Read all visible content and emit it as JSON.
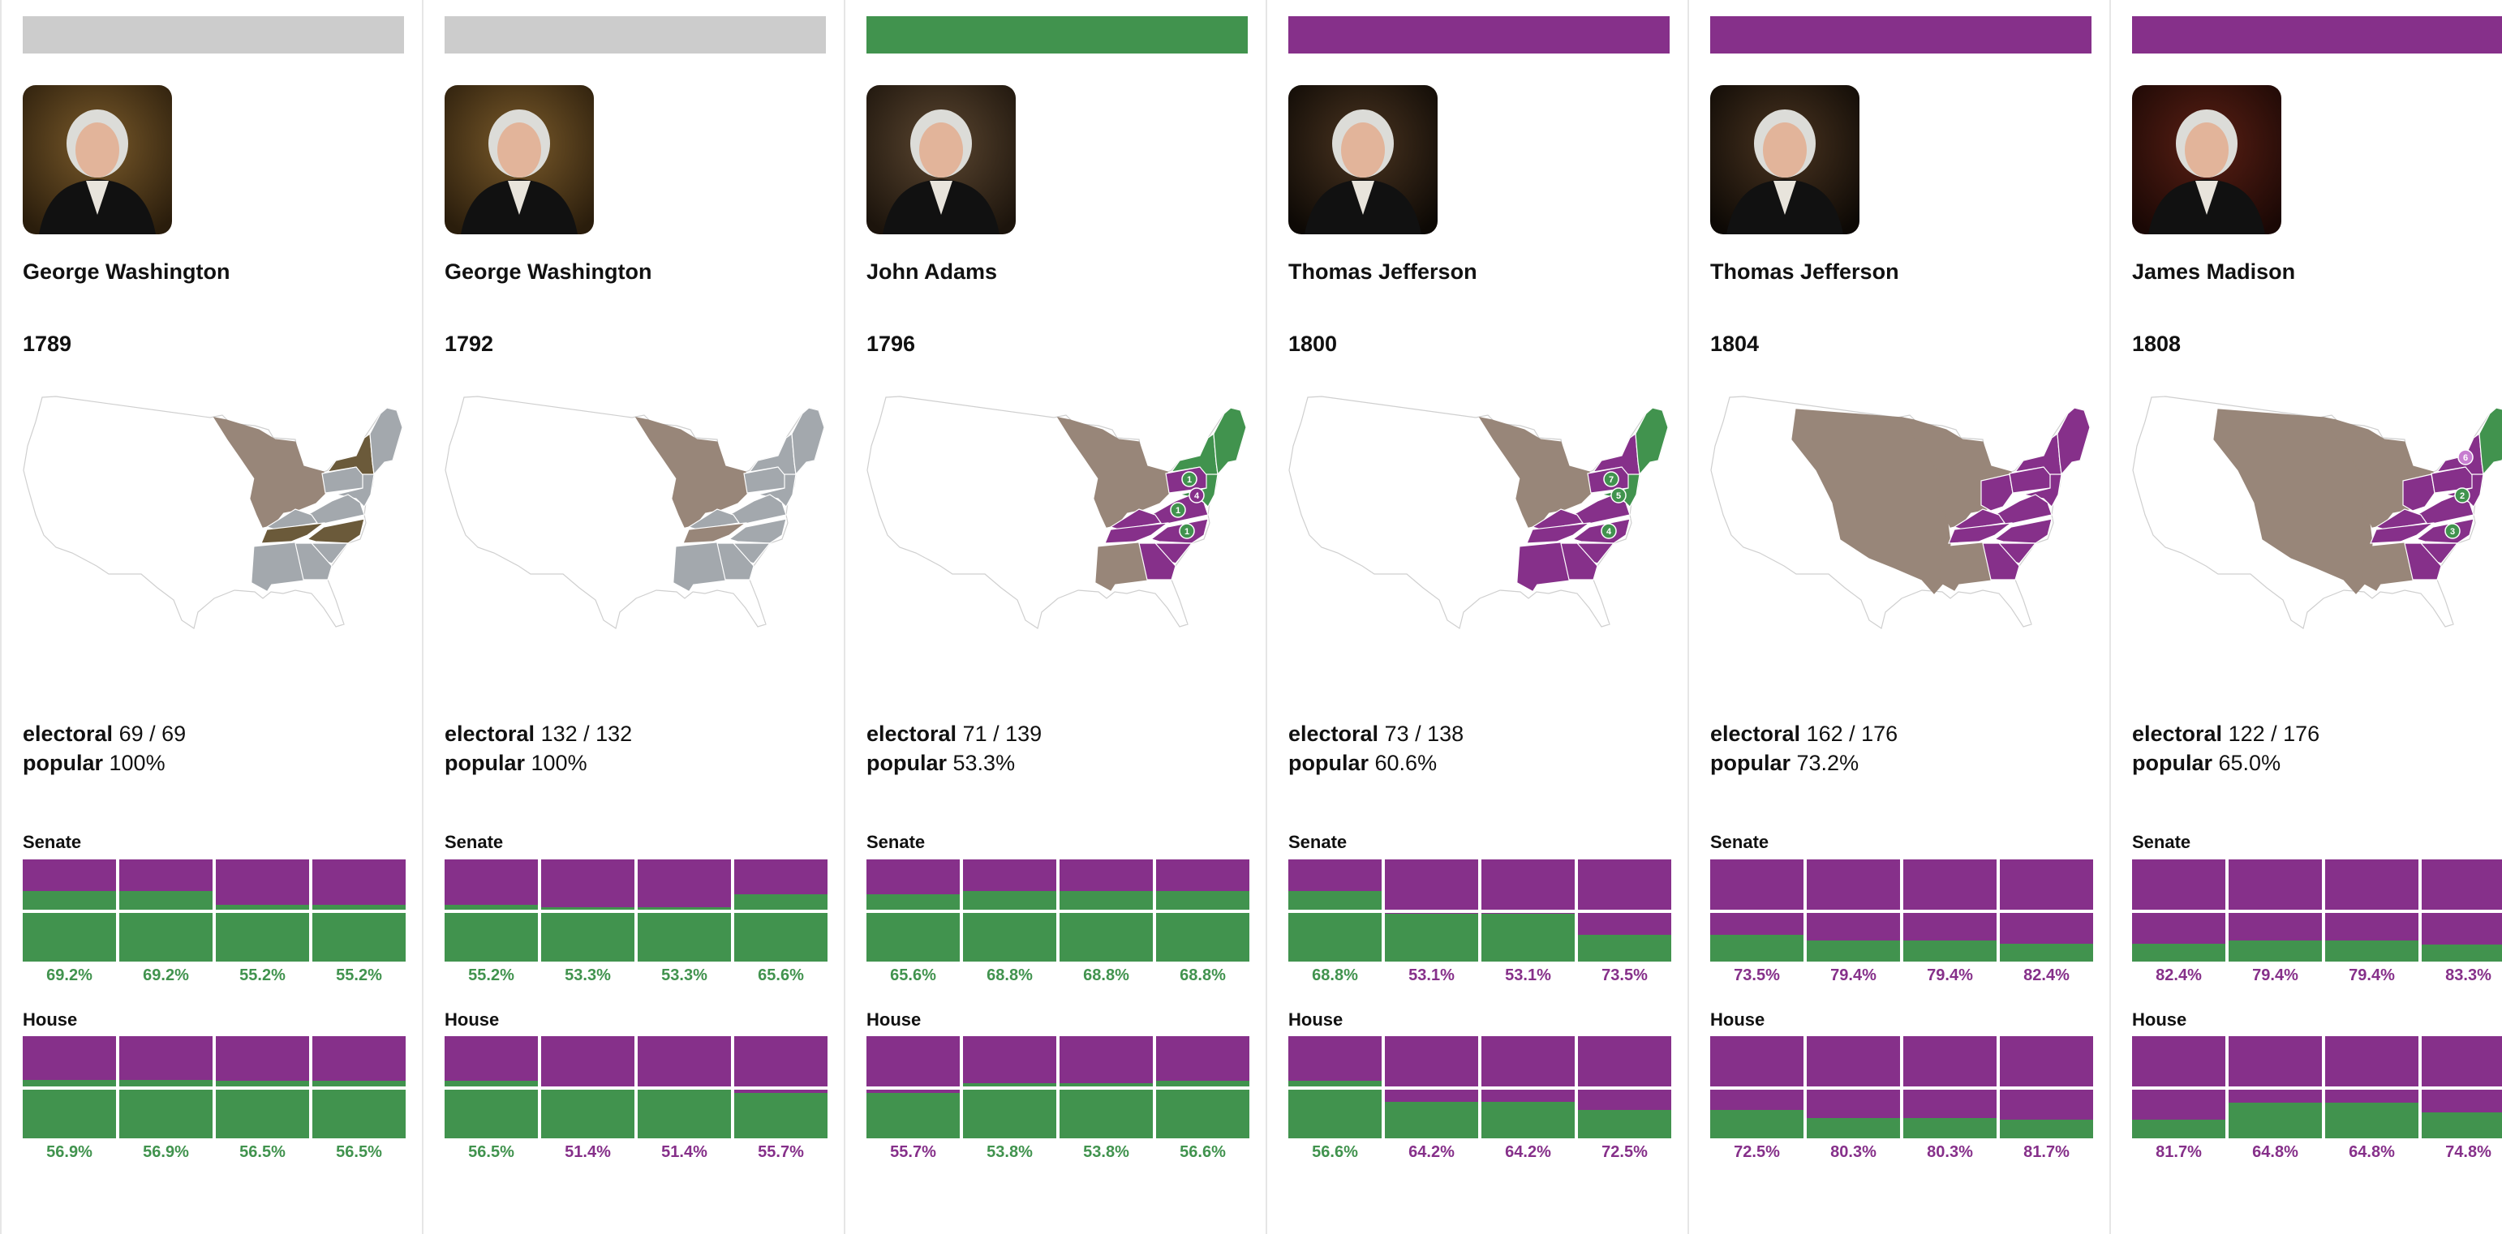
{
  "colors": {
    "green": "#41934e",
    "purple": "#86308a",
    "gray_bar": "#cccccc",
    "territory": "#988679",
    "unvoted": "#6b5a3a",
    "other": "#a3a8ad",
    "disputed": "#d3c2a3",
    "badge_light_purple": "#c77dd0"
  },
  "labels": {
    "electoral": "electoral",
    "popular": "popular",
    "senate": "Senate",
    "house": "House"
  },
  "columns": [
    {
      "winner_bar_color": "gray_bar",
      "name": "George Washington",
      "portrait": "george-washington",
      "year": "1789",
      "electoral": "69 / 69",
      "popular": "100%",
      "map": {
        "nwt": "territory",
        "swt": "other",
        "ne": "other",
        "ny": "unvoted",
        "pa": "other",
        "mid": "other",
        "va": "other",
        "ky": "other",
        "tn": "unvoted",
        "nc": "unvoted",
        "sc": "other",
        "ga": "other"
      },
      "badges": [],
      "senate": [
        {
          "value": "69.2%",
          "green": 69.2,
          "color": "green"
        },
        {
          "value": "69.2%",
          "green": 69.2,
          "color": "green"
        },
        {
          "value": "55.2%",
          "green": 55.2,
          "color": "green"
        },
        {
          "value": "55.2%",
          "green": 55.2,
          "color": "green"
        }
      ],
      "house": [
        {
          "value": "56.9%",
          "green": 56.9,
          "color": "green"
        },
        {
          "value": "56.9%",
          "green": 56.9,
          "color": "green"
        },
        {
          "value": "56.5%",
          "green": 56.5,
          "color": "green"
        },
        {
          "value": "56.5%",
          "green": 56.5,
          "color": "green"
        }
      ]
    },
    {
      "winner_bar_color": "gray_bar",
      "name": "George Washington",
      "portrait": "george-washington",
      "year": "1792",
      "electoral": "132 / 132",
      "popular": "100%",
      "map": {
        "nwt": "territory",
        "swt": "other",
        "ne": "other",
        "ny": "other",
        "pa": "other",
        "mid": "other",
        "va": "other",
        "ky": "other",
        "tn": "territory",
        "nc": "other",
        "sc": "other",
        "ga": "other"
      },
      "badges": [],
      "senate": [
        {
          "value": "55.2%",
          "green": 55.2,
          "color": "green"
        },
        {
          "value": "53.3%",
          "green": 53.3,
          "color": "green"
        },
        {
          "value": "53.3%",
          "green": 53.3,
          "color": "green"
        },
        {
          "value": "65.6%",
          "green": 65.6,
          "color": "green"
        }
      ],
      "house": [
        {
          "value": "56.5%",
          "green": 56.5,
          "color": "green"
        },
        {
          "value": "51.4%",
          "green": 48.6,
          "color": "purple"
        },
        {
          "value": "51.4%",
          "green": 48.6,
          "color": "purple"
        },
        {
          "value": "55.7%",
          "green": 44.3,
          "color": "purple"
        }
      ]
    },
    {
      "winner_bar_color": "green",
      "name": "John Adams",
      "portrait": "john-adams",
      "year": "1796",
      "electoral": "71 / 139",
      "popular": "53.3%",
      "map": {
        "nwt": "territory",
        "swt": "territory",
        "ne": "green",
        "ny": "green",
        "pa": "purple",
        "mid": "green",
        "va": "purple",
        "ky": "purple",
        "tn": "purple",
        "nc": "purple",
        "sc": "purple",
        "ga": "purple"
      },
      "badges": [
        {
          "label": "1",
          "color": "green",
          "state": "pa"
        },
        {
          "label": "4",
          "color": "purple",
          "state": "md"
        },
        {
          "label": "1",
          "color": "green",
          "state": "va"
        },
        {
          "label": "1",
          "color": "green",
          "state": "nc"
        }
      ],
      "senate": [
        {
          "value": "65.6%",
          "green": 65.6,
          "color": "green"
        },
        {
          "value": "68.8%",
          "green": 68.8,
          "color": "green"
        },
        {
          "value": "68.8%",
          "green": 68.8,
          "color": "green"
        },
        {
          "value": "68.8%",
          "green": 68.8,
          "color": "green"
        }
      ],
      "house": [
        {
          "value": "55.7%",
          "green": 44.3,
          "color": "purple"
        },
        {
          "value": "53.8%",
          "green": 53.8,
          "color": "green"
        },
        {
          "value": "53.8%",
          "green": 53.8,
          "color": "green"
        },
        {
          "value": "56.6%",
          "green": 56.6,
          "color": "green"
        }
      ]
    },
    {
      "winner_bar_color": "purple",
      "name": "Thomas Jefferson",
      "portrait": "thomas-jefferson",
      "year": "1800",
      "electoral": "73 / 138",
      "popular": "60.6%",
      "map": {
        "nwt": "territory",
        "swt": "purple",
        "ne": "green",
        "ny": "purple",
        "pa": "purple",
        "mid": "green",
        "va": "purple",
        "ky": "purple",
        "tn": "purple",
        "nc": "purple",
        "sc": "purple",
        "ga": "purple"
      },
      "badges": [
        {
          "label": "7",
          "color": "green",
          "state": "pa"
        },
        {
          "label": "5",
          "color": "green",
          "state": "md"
        },
        {
          "label": "4",
          "color": "green",
          "state": "nc"
        }
      ],
      "senate": [
        {
          "value": "68.8%",
          "green": 68.8,
          "color": "green"
        },
        {
          "value": "53.1%",
          "green": 46.9,
          "color": "purple"
        },
        {
          "value": "53.1%",
          "green": 46.9,
          "color": "purple"
        },
        {
          "value": "73.5%",
          "green": 26.5,
          "color": "purple"
        }
      ],
      "house": [
        {
          "value": "56.6%",
          "green": 56.6,
          "color": "green"
        },
        {
          "value": "64.2%",
          "green": 35.8,
          "color": "purple"
        },
        {
          "value": "64.2%",
          "green": 35.8,
          "color": "purple"
        },
        {
          "value": "72.5%",
          "green": 27.5,
          "color": "purple"
        }
      ]
    },
    {
      "winner_bar_color": "purple",
      "name": "Thomas Jefferson",
      "portrait": "thomas-jefferson",
      "year": "1804",
      "electoral": "162 / 176",
      "popular": "73.2%",
      "map": {
        "louisiana": "territory",
        "nwt": "territory",
        "swt": "territory",
        "ohio": "purple",
        "ne": "purple",
        "ny": "purple",
        "pa": "purple",
        "mid": "purple",
        "va": "purple",
        "ky": "purple",
        "tn": "purple",
        "nc": "purple",
        "sc": "purple",
        "ga": "purple"
      },
      "badges": [],
      "senate": [
        {
          "value": "73.5%",
          "green": 26.5,
          "color": "purple"
        },
        {
          "value": "79.4%",
          "green": 20.6,
          "color": "purple"
        },
        {
          "value": "79.4%",
          "green": 20.6,
          "color": "purple"
        },
        {
          "value": "82.4%",
          "green": 17.6,
          "color": "purple"
        }
      ],
      "house": [
        {
          "value": "72.5%",
          "green": 27.5,
          "color": "purple"
        },
        {
          "value": "80.3%",
          "green": 19.7,
          "color": "purple"
        },
        {
          "value": "80.3%",
          "green": 19.7,
          "color": "purple"
        },
        {
          "value": "81.7%",
          "green": 18.3,
          "color": "purple"
        }
      ]
    },
    {
      "winner_bar_color": "purple",
      "name": "James Madison",
      "portrait": "james-madison",
      "year": "1808",
      "electoral": "122 / 176",
      "popular": "65.0%",
      "map": {
        "louisiana": "territory",
        "nwt": "territory",
        "swt": "territory",
        "ohio": "purple",
        "ne": "green",
        "ny": "purple",
        "pa": "purple",
        "mid": "purple",
        "va": "purple",
        "ky": "purple",
        "tn": "purple",
        "nc": "purple",
        "sc": "purple",
        "ga": "purple"
      },
      "badges": [
        {
          "label": "6",
          "color": "badge_light_purple",
          "state": "ny"
        },
        {
          "label": "2",
          "color": "green",
          "state": "md"
        },
        {
          "label": "3",
          "color": "green",
          "state": "nc"
        }
      ],
      "senate": [
        {
          "value": "82.4%",
          "green": 17.6,
          "color": "purple"
        },
        {
          "value": "79.4%",
          "green": 20.6,
          "color": "purple"
        },
        {
          "value": "79.4%",
          "green": 20.6,
          "color": "purple"
        },
        {
          "value": "83.3%",
          "green": 16.7,
          "color": "purple"
        }
      ],
      "house": [
        {
          "value": "81.7%",
          "green": 18.3,
          "color": "purple"
        },
        {
          "value": "64.8%",
          "green": 35.2,
          "color": "purple"
        },
        {
          "value": "64.8%",
          "green": 35.2,
          "color": "purple"
        },
        {
          "value": "74.8%",
          "green": 25.2,
          "color": "purple"
        }
      ]
    }
  ]
}
